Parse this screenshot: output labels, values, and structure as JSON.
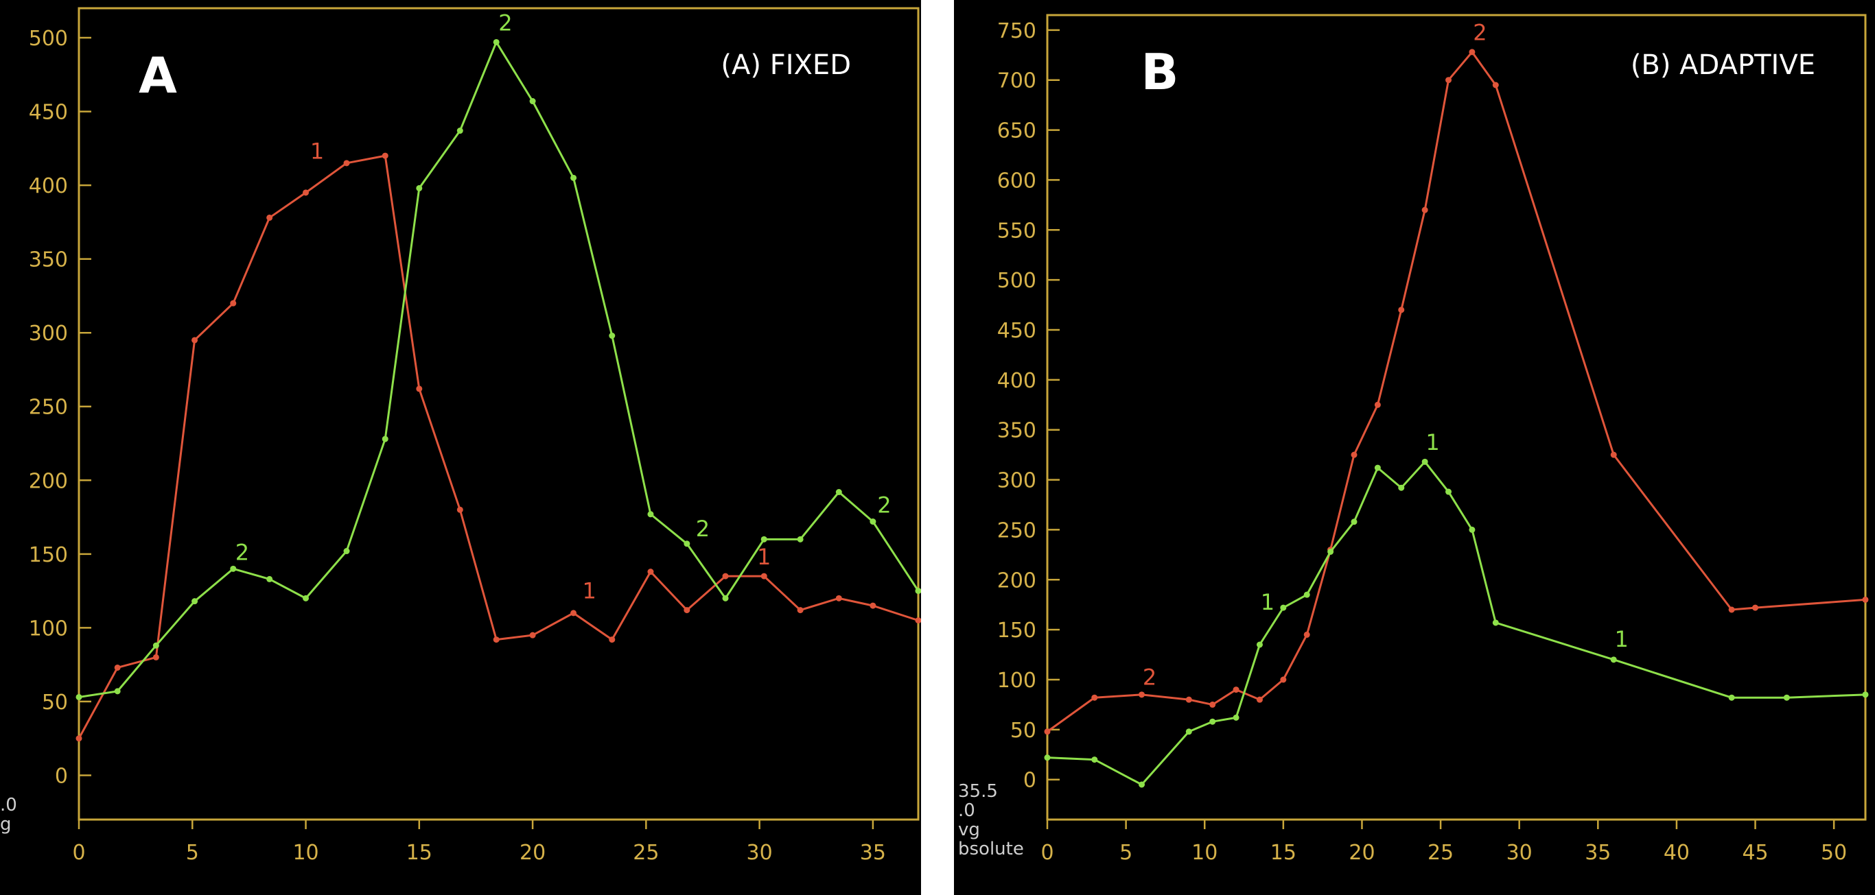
{
  "colors": {
    "background": "#000000",
    "axis": "#c8a63a",
    "tick_label": "#d6b24a",
    "series_red": "#e0553a",
    "series_green": "#8ee04a",
    "text": "#ffffff"
  },
  "chart_data": [
    {
      "type": "line",
      "panel_letter": "A",
      "title": "(A)  FIXED",
      "xlim": [
        0,
        37
      ],
      "ylim": [
        -30,
        520
      ],
      "x_ticks": [
        0,
        5,
        10,
        15,
        20,
        25,
        30,
        35
      ],
      "y_ticks": [
        0,
        50,
        100,
        150,
        200,
        250,
        300,
        350,
        400,
        450,
        500
      ],
      "corner_labels": [
        ".0",
        "g"
      ],
      "grid": false,
      "series": [
        {
          "name": "1",
          "color": "#e0553a",
          "x": [
            0,
            1.7,
            3.4,
            5.1,
            6.8,
            8.4,
            10,
            11.8,
            13.5,
            15,
            16.8,
            18.4,
            20,
            21.8,
            23.5,
            25.2,
            26.8,
            28.5,
            30.2,
            31.8,
            33.5,
            35,
            37
          ],
          "y": [
            25,
            73,
            80,
            295,
            320,
            378,
            395,
            415,
            420,
            262,
            180,
            92,
            95,
            110,
            92,
            138,
            112,
            135,
            135,
            112,
            120,
            115,
            105
          ],
          "labels": [
            {
              "text": "1",
              "x": 10.5,
              "y": 418
            },
            {
              "text": "1",
              "x": 22.5,
              "y": 120
            },
            {
              "text": "1",
              "x": 30.2,
              "y": 143
            }
          ]
        },
        {
          "name": "2",
          "color": "#8ee04a",
          "x": [
            0,
            1.7,
            3.4,
            5.1,
            6.8,
            8.4,
            10,
            11.8,
            13.5,
            15,
            16.8,
            18.4,
            20,
            21.8,
            23.5,
            25.2,
            26.8,
            28.5,
            30.2,
            31.8,
            33.5,
            35,
            37
          ],
          "y": [
            53,
            57,
            88,
            118,
            140,
            133,
            120,
            152,
            228,
            398,
            437,
            497,
            457,
            405,
            298,
            177,
            157,
            120,
            160,
            160,
            192,
            172,
            125
          ],
          "labels": [
            {
              "text": "2",
              "x": 7.2,
              "y": 146
            },
            {
              "text": "2",
              "x": 18.8,
              "y": 505
            },
            {
              "text": "2",
              "x": 27.5,
              "y": 162
            },
            {
              "text": "2",
              "x": 35.5,
              "y": 178
            }
          ]
        }
      ]
    },
    {
      "type": "line",
      "panel_letter": "B",
      "title": "(B) ADAPTIVE",
      "xlim": [
        0,
        52
      ],
      "ylim": [
        -40,
        765
      ],
      "x_ticks": [
        0,
        5,
        10,
        15,
        20,
        25,
        30,
        35,
        40,
        45,
        50
      ],
      "y_ticks": [
        0,
        50,
        100,
        150,
        200,
        250,
        300,
        350,
        400,
        450,
        500,
        550,
        600,
        650,
        700,
        750
      ],
      "corner_labels": [
        "35.5",
        ".0",
        "vg",
        "bsolute"
      ],
      "grid": false,
      "series": [
        {
          "name": "2",
          "color": "#e0553a",
          "x": [
            0,
            3,
            6,
            9,
            10.5,
            12,
            13.5,
            15,
            16.5,
            18,
            19.5,
            21,
            22.5,
            24,
            25.5,
            27,
            28.5,
            36,
            43.5,
            45,
            52
          ],
          "y": [
            48,
            82,
            85,
            80,
            75,
            90,
            80,
            100,
            145,
            230,
            325,
            375,
            470,
            570,
            700,
            728,
            695,
            325,
            170,
            172,
            180
          ],
          "labels": [
            {
              "text": "2",
              "x": 6.5,
              "y": 95
            },
            {
              "text": "2",
              "x": 27.5,
              "y": 740
            }
          ]
        },
        {
          "name": "1",
          "color": "#8ee04a",
          "x": [
            0,
            3,
            6,
            9,
            10.5,
            12,
            13.5,
            15,
            16.5,
            18,
            19.5,
            21,
            22.5,
            24,
            25.5,
            27,
            28.5,
            36,
            43.5,
            47,
            52
          ],
          "y": [
            22,
            20,
            -5,
            48,
            58,
            62,
            135,
            172,
            185,
            228,
            258,
            312,
            292,
            318,
            288,
            250,
            157,
            120,
            82,
            82,
            85
          ],
          "labels": [
            {
              "text": "1",
              "x": 14,
              "y": 170
            },
            {
              "text": "1",
              "x": 24.5,
              "y": 330
            },
            {
              "text": "1",
              "x": 36.5,
              "y": 133
            }
          ]
        }
      ]
    }
  ]
}
